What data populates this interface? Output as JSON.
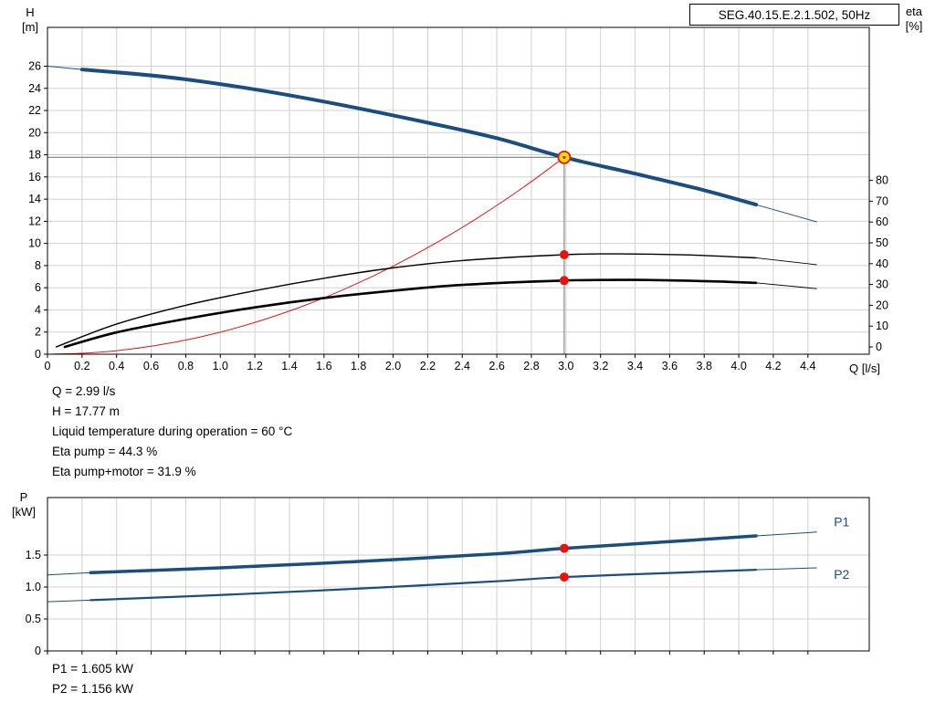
{
  "header": {
    "title": "SEG.40.15.E.2.1.502, 50Hz"
  },
  "axes": {
    "h": "H",
    "h_unit": "[m]",
    "eta": "eta",
    "eta_unit": "[%]",
    "q": "Q [l/s]",
    "p": "P",
    "p_unit": "[kW]"
  },
  "annotations": {
    "q": "Q = 2.99 l/s",
    "h": "H = 17.77 m",
    "temp": "Liquid temperature during operation = 60 °C",
    "eta_pump": "Eta pump = 44.3 %",
    "eta_pump_motor": "Eta pump+motor = 31.9 %",
    "p1": "P1 = 1.605 kW",
    "p2": "P2 = 1.156 kW"
  },
  "colors": {
    "curve_blue": "#1a4e80",
    "curve_red": "#e8140c",
    "duty_yellow": "#ffdf00",
    "grid": "#d0d0d0",
    "reference": "#8a8a8a"
  },
  "chart_data": [
    {
      "name": "hq-eta-chart",
      "type": "line",
      "title": "SEG.40.15.E.2.1.502, 50Hz",
      "xlabel": "Q [l/s]",
      "ylabel": "H [m]",
      "ylabel_right": "eta [%]",
      "xlim": [
        0,
        4.755
      ],
      "ylim": [
        0,
        29.5
      ],
      "ylim_right": [
        -3.5,
        153.5
      ],
      "grid_color": "#d0d0d0",
      "ref_color": "#8a8a8a",
      "x_ticks": {
        "values": [
          0,
          0.2,
          0.4,
          0.6,
          0.8,
          1,
          1.2,
          1.4,
          1.6,
          1.8,
          2,
          2.2,
          2.4,
          2.6,
          2.8,
          3,
          3.2,
          3.4,
          3.6,
          3.8,
          4,
          4.2,
          4.4
        ],
        "labels": [
          "0",
          "0.2",
          "0.4",
          "0.6",
          "0.8",
          "1.0",
          "1.2",
          "1.4",
          "1.6",
          "1.8",
          "2.0",
          "2.2",
          "2.4",
          "2.6",
          "2.8",
          "3.0",
          "3.2",
          "3.4",
          "3.6",
          "3.8",
          "4.0",
          "4.2",
          "4.4"
        ]
      },
      "y_ticks": {
        "values": [
          0,
          2,
          4,
          6,
          8,
          10,
          12,
          14,
          16,
          18,
          20,
          22,
          24,
          26
        ],
        "labels": [
          "0",
          "2",
          "4",
          "6",
          "8",
          "10",
          "12",
          "14",
          "16",
          "18",
          "20",
          "22",
          "24",
          "26"
        ]
      },
      "right_ticks": {
        "values": [
          0,
          10,
          20,
          30,
          40,
          50,
          60,
          70,
          80
        ],
        "labels": [
          "0",
          "10",
          "20",
          "30",
          "40",
          "50",
          "60",
          "70",
          "80"
        ]
      },
      "ref_lines": [
        {
          "name": "h-reference-line",
          "type": "h",
          "y": 17.77,
          "x1": 0,
          "x2": 2.99
        },
        {
          "name": "q-reference-line",
          "type": "v",
          "x": 2.99,
          "y1": 0,
          "y2": 17.77
        }
      ],
      "series": [
        {
          "name": "hq-curve-lead",
          "axis": "left",
          "color": "#1a4e80",
          "width": 1,
          "points": [
            [
              0,
              26
            ],
            [
              0.2,
              25.7
            ]
          ]
        },
        {
          "name": "hq-curve",
          "axis": "left",
          "color": "#1a4e80",
          "width": 4,
          "points": [
            [
              0.2,
              25.7
            ],
            [
              0.7,
              25.0
            ],
            [
              1.2,
              23.9
            ],
            [
              1.7,
              22.5
            ],
            [
              2.2,
              20.9
            ],
            [
              2.6,
              19.5
            ],
            [
              2.99,
              17.77
            ],
            [
              3.4,
              16.3
            ],
            [
              3.8,
              14.8
            ],
            [
              4.1,
              13.5
            ]
          ]
        },
        {
          "name": "hq-curve-tail",
          "axis": "left",
          "color": "#1a4e80",
          "width": 1,
          "points": [
            [
              4.1,
              13.5
            ],
            [
              4.45,
              11.95
            ]
          ]
        },
        {
          "name": "system-curve",
          "axis": "left",
          "color": "#e8140c",
          "width": 1,
          "points": [
            [
              0,
              0
            ],
            [
              0.25,
              0.12
            ],
            [
              0.5,
              0.5
            ],
            [
              0.75,
              1.12
            ],
            [
              1,
              1.99
            ],
            [
              1.25,
              3.11
            ],
            [
              1.5,
              4.47
            ],
            [
              1.75,
              6.09
            ],
            [
              2,
              7.95
            ],
            [
              2.25,
              10.06
            ],
            [
              2.5,
              12.42
            ],
            [
              2.75,
              15.03
            ],
            [
              2.99,
              17.77
            ]
          ]
        },
        {
          "name": "eta-pump-curve",
          "axis": "right",
          "color": "#000000",
          "width": 1.4,
          "points": [
            [
              0.05,
              0
            ],
            [
              0.4,
              11
            ],
            [
              0.8,
              20
            ],
            [
              1.2,
              27
            ],
            [
              1.6,
              33
            ],
            [
              2,
              38
            ],
            [
              2.4,
              41.5
            ],
            [
              2.99,
              44.3
            ],
            [
              3.3,
              44.7
            ],
            [
              3.7,
              44.2
            ],
            [
              4.1,
              42.8
            ]
          ]
        },
        {
          "name": "eta-pump-curve-tail",
          "axis": "right",
          "color": "#000000",
          "width": 0.9,
          "points": [
            [
              4.1,
              42.8
            ],
            [
              4.45,
              39.5
            ]
          ]
        },
        {
          "name": "eta-pump-motor-curve",
          "axis": "right",
          "color": "#000000",
          "width": 2.6,
          "points": [
            [
              0.1,
              0
            ],
            [
              0.4,
              7
            ],
            [
              0.8,
              13.5
            ],
            [
              1.2,
              19
            ],
            [
              1.6,
              23.5
            ],
            [
              2,
              27
            ],
            [
              2.4,
              29.8
            ],
            [
              2.99,
              31.9
            ],
            [
              3.4,
              32.2
            ],
            [
              3.8,
              31.6
            ],
            [
              4.1,
              30.8
            ]
          ]
        },
        {
          "name": "eta-pump-motor-curve-tail",
          "axis": "right",
          "color": "#000000",
          "width": 0.9,
          "points": [
            [
              4.1,
              30.8
            ],
            [
              4.45,
              28
            ]
          ]
        }
      ],
      "markers": [
        {
          "name": "eta-pump-point",
          "axis": "right",
          "x": 2.99,
          "y": 44.3,
          "style": "dot",
          "fill": "#e8140c"
        },
        {
          "name": "eta-pump-motor-point",
          "axis": "right",
          "x": 2.99,
          "y": 31.9,
          "style": "dot",
          "fill": "#e8140c"
        },
        {
          "name": "duty-point",
          "axis": "left",
          "x": 2.99,
          "y": 17.77,
          "style": "duty",
          "fill": "#ffdf00",
          "stroke": "#e8140c"
        }
      ],
      "duty_point": {
        "q_ls": 2.99,
        "h_m": 17.77,
        "eta_pump_pct": 44.3,
        "eta_pump_motor_pct": 31.9,
        "liquid_temp_c": 60
      }
    },
    {
      "name": "power-chart",
      "type": "line",
      "xlabel": "",
      "ylabel": "P [kW]",
      "xlim": [
        0,
        4.755
      ],
      "ylim": [
        0,
        2.4
      ],
      "grid_color": "#d0d0d0",
      "ref_color": "#8a8a8a",
      "x_ticks": {
        "values": [
          0,
          0.2,
          0.4,
          0.6,
          0.8,
          1,
          1.2,
          1.4,
          1.6,
          1.8,
          2,
          2.2,
          2.4,
          2.6,
          2.8,
          3,
          3.2,
          3.4,
          3.6,
          3.8,
          4,
          4.2,
          4.4
        ],
        "labels": []
      },
      "y_ticks": {
        "values": [
          0,
          0.5,
          1,
          1.5
        ],
        "labels": [
          "0",
          "0.5",
          "1.0",
          "1.5"
        ]
      },
      "series": [
        {
          "name": "p1-curve-lead",
          "axis": "left",
          "color": "#1a4e80",
          "width": 1,
          "points": [
            [
              0,
              1.19
            ],
            [
              0.25,
              1.225
            ]
          ]
        },
        {
          "name": "p1-curve",
          "axis": "left",
          "color": "#1a4e80",
          "width": 3.5,
          "points": [
            [
              0.25,
              1.225
            ],
            [
              1,
              1.3
            ],
            [
              1.8,
              1.4
            ],
            [
              2.6,
              1.52
            ],
            [
              2.99,
              1.605
            ],
            [
              3.6,
              1.71
            ],
            [
              4.1,
              1.8
            ]
          ]
        },
        {
          "name": "p1-curve-tail",
          "axis": "left",
          "color": "#1a4e80",
          "width": 1,
          "points": [
            [
              4.1,
              1.8
            ],
            [
              4.45,
              1.86
            ]
          ]
        },
        {
          "name": "p2-curve-lead",
          "axis": "left",
          "color": "#1a4e80",
          "width": 1,
          "points": [
            [
              0,
              0.77
            ],
            [
              0.25,
              0.795
            ]
          ]
        },
        {
          "name": "p2-curve",
          "axis": "left",
          "color": "#1a4e80",
          "width": 2.2,
          "points": [
            [
              0.25,
              0.795
            ],
            [
              1,
              0.875
            ],
            [
              1.8,
              0.975
            ],
            [
              2.6,
              1.09
            ],
            [
              2.99,
              1.156
            ],
            [
              3.6,
              1.22
            ],
            [
              4.1,
              1.27
            ]
          ]
        },
        {
          "name": "p2-curve-tail",
          "axis": "left",
          "color": "#1a4e80",
          "width": 1,
          "points": [
            [
              4.1,
              1.27
            ],
            [
              4.45,
              1.3
            ]
          ]
        }
      ],
      "markers": [
        {
          "name": "p1-point",
          "axis": "left",
          "x": 2.99,
          "y": 1.605,
          "style": "dot",
          "fill": "#e8140c"
        },
        {
          "name": "p2-point",
          "axis": "left",
          "x": 2.99,
          "y": 1.156,
          "style": "dot",
          "fill": "#e8140c"
        }
      ],
      "labels": [
        {
          "name": "p1-curve-label",
          "text": "P1",
          "x": 4.55,
          "y": 1.95,
          "color": "#1a4e80",
          "size": 14
        },
        {
          "name": "p2-curve-label",
          "text": "P2",
          "x": 4.55,
          "y": 1.13,
          "color": "#1a4e80",
          "size": 14
        }
      ],
      "duty_values": {
        "p1_kw": 1.605,
        "p2_kw": 1.156
      }
    }
  ]
}
